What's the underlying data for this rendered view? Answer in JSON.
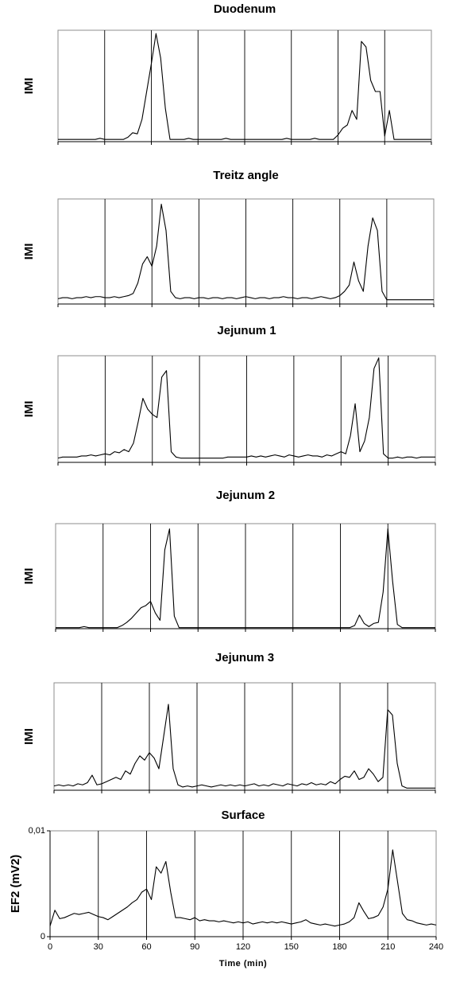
{
  "chart_data": [
    {
      "type": "line",
      "title": "Duodenum",
      "ylabel": "IMI",
      "xlim": [
        0,
        240
      ],
      "xticks": [
        0,
        30,
        60,
        90,
        120,
        150,
        180,
        210,
        240
      ],
      "xtick_labels": false,
      "ylim": [
        0,
        1
      ],
      "grid": true,
      "color": "#000000",
      "x": [
        0,
        3,
        6,
        9,
        12,
        15,
        18,
        21,
        24,
        27,
        30,
        33,
        36,
        39,
        42,
        45,
        48,
        51,
        54,
        57,
        60,
        63,
        66,
        69,
        72,
        75,
        78,
        81,
        84,
        87,
        90,
        93,
        96,
        99,
        102,
        105,
        108,
        111,
        114,
        117,
        120,
        123,
        126,
        129,
        132,
        135,
        138,
        141,
        144,
        147,
        150,
        153,
        156,
        159,
        162,
        165,
        168,
        171,
        174,
        177,
        180,
        183,
        186,
        189,
        192,
        195,
        198,
        201,
        204,
        207,
        210,
        213,
        216,
        219,
        222,
        225,
        228,
        231,
        234,
        237,
        240
      ],
      "values": [
        0.02,
        0.02,
        0.02,
        0.02,
        0.02,
        0.02,
        0.02,
        0.02,
        0.02,
        0.03,
        0.02,
        0.02,
        0.02,
        0.02,
        0.02,
        0.04,
        0.08,
        0.07,
        0.2,
        0.45,
        0.7,
        0.97,
        0.75,
        0.3,
        0.02,
        0.02,
        0.02,
        0.02,
        0.03,
        0.02,
        0.02,
        0.02,
        0.02,
        0.02,
        0.02,
        0.02,
        0.03,
        0.02,
        0.02,
        0.02,
        0.02,
        0.02,
        0.02,
        0.02,
        0.02,
        0.02,
        0.02,
        0.02,
        0.02,
        0.03,
        0.02,
        0.02,
        0.02,
        0.02,
        0.02,
        0.03,
        0.02,
        0.02,
        0.02,
        0.02,
        0.06,
        0.12,
        0.15,
        0.28,
        0.2,
        0.9,
        0.85,
        0.55,
        0.45,
        0.45,
        0.05,
        0.28,
        0.02,
        0.02,
        0.02,
        0.02,
        0.02,
        0.02,
        0.02,
        0.02,
        0.02
      ]
    },
    {
      "type": "line",
      "title": "Treitz angle",
      "ylabel": "IMI",
      "xlim": [
        0,
        240
      ],
      "xticks": [
        0,
        30,
        60,
        90,
        120,
        150,
        180,
        210,
        240
      ],
      "xtick_labels": false,
      "ylim": [
        0,
        1
      ],
      "grid": true,
      "color": "#000000",
      "x": [
        0,
        3,
        6,
        9,
        12,
        15,
        18,
        21,
        24,
        27,
        30,
        33,
        36,
        39,
        42,
        45,
        48,
        51,
        54,
        57,
        60,
        63,
        66,
        69,
        72,
        75,
        78,
        81,
        84,
        87,
        90,
        93,
        96,
        99,
        102,
        105,
        108,
        111,
        114,
        117,
        120,
        123,
        126,
        129,
        132,
        135,
        138,
        141,
        144,
        147,
        150,
        153,
        156,
        159,
        162,
        165,
        168,
        171,
        174,
        177,
        180,
        183,
        186,
        189,
        192,
        195,
        198,
        201,
        204,
        207,
        210,
        213,
        216,
        219,
        222,
        225,
        228,
        231,
        234,
        237,
        240
      ],
      "values": [
        0.05,
        0.06,
        0.06,
        0.05,
        0.06,
        0.06,
        0.07,
        0.06,
        0.07,
        0.07,
        0.06,
        0.06,
        0.07,
        0.06,
        0.07,
        0.08,
        0.1,
        0.2,
        0.38,
        0.45,
        0.36,
        0.55,
        0.95,
        0.7,
        0.12,
        0.06,
        0.05,
        0.06,
        0.06,
        0.05,
        0.06,
        0.06,
        0.05,
        0.06,
        0.06,
        0.05,
        0.06,
        0.06,
        0.05,
        0.06,
        0.07,
        0.06,
        0.05,
        0.06,
        0.06,
        0.05,
        0.06,
        0.06,
        0.07,
        0.06,
        0.06,
        0.05,
        0.06,
        0.06,
        0.05,
        0.06,
        0.07,
        0.06,
        0.05,
        0.06,
        0.08,
        0.12,
        0.18,
        0.4,
        0.22,
        0.12,
        0.55,
        0.82,
        0.7,
        0.12,
        0.04,
        0.04,
        0.04,
        0.04,
        0.04,
        0.04,
        0.04,
        0.04,
        0.04,
        0.04,
        0.04
      ]
    },
    {
      "type": "line",
      "title": "Jejunum 1",
      "ylabel": "IMI",
      "xlim": [
        0,
        240
      ],
      "xticks": [
        0,
        30,
        60,
        90,
        120,
        150,
        180,
        210,
        240
      ],
      "xtick_labels": false,
      "ylim": [
        0,
        1
      ],
      "grid": true,
      "color": "#000000",
      "x": [
        0,
        3,
        6,
        9,
        12,
        15,
        18,
        21,
        24,
        27,
        30,
        33,
        36,
        39,
        42,
        45,
        48,
        51,
        54,
        57,
        60,
        63,
        66,
        69,
        72,
        75,
        78,
        81,
        84,
        87,
        90,
        93,
        96,
        99,
        102,
        105,
        108,
        111,
        114,
        117,
        120,
        123,
        126,
        129,
        132,
        135,
        138,
        141,
        144,
        147,
        150,
        153,
        156,
        159,
        162,
        165,
        168,
        171,
        174,
        177,
        180,
        183,
        186,
        189,
        192,
        195,
        198,
        201,
        204,
        207,
        210,
        213,
        216,
        219,
        222,
        225,
        228,
        231,
        234,
        237,
        240
      ],
      "values": [
        0.04,
        0.05,
        0.05,
        0.05,
        0.05,
        0.06,
        0.06,
        0.07,
        0.06,
        0.07,
        0.08,
        0.07,
        0.1,
        0.09,
        0.12,
        0.1,
        0.18,
        0.38,
        0.6,
        0.5,
        0.45,
        0.42,
        0.8,
        0.86,
        0.1,
        0.05,
        0.04,
        0.04,
        0.04,
        0.04,
        0.04,
        0.04,
        0.04,
        0.04,
        0.04,
        0.04,
        0.05,
        0.05,
        0.05,
        0.05,
        0.05,
        0.06,
        0.05,
        0.06,
        0.05,
        0.06,
        0.07,
        0.06,
        0.05,
        0.07,
        0.06,
        0.05,
        0.06,
        0.07,
        0.06,
        0.06,
        0.05,
        0.07,
        0.06,
        0.08,
        0.1,
        0.08,
        0.25,
        0.55,
        0.1,
        0.2,
        0.42,
        0.88,
        0.98,
        0.08,
        0.04,
        0.04,
        0.05,
        0.04,
        0.05,
        0.05,
        0.04,
        0.05,
        0.05,
        0.05,
        0.05
      ]
    },
    {
      "type": "line",
      "title": "Jejunum 2",
      "ylabel": "IMI",
      "xlim": [
        0,
        240
      ],
      "xticks": [
        0,
        30,
        60,
        90,
        120,
        150,
        180,
        210,
        240
      ],
      "xtick_labels": false,
      "ylim": [
        0,
        1
      ],
      "grid": true,
      "color": "#000000",
      "x": [
        0,
        3,
        6,
        9,
        12,
        15,
        18,
        21,
        24,
        27,
        30,
        33,
        36,
        39,
        42,
        45,
        48,
        51,
        54,
        57,
        60,
        63,
        66,
        69,
        72,
        75,
        78,
        81,
        84,
        87,
        90,
        93,
        96,
        99,
        102,
        105,
        108,
        111,
        114,
        117,
        120,
        123,
        126,
        129,
        132,
        135,
        138,
        141,
        144,
        147,
        150,
        153,
        156,
        159,
        162,
        165,
        168,
        171,
        174,
        177,
        180,
        183,
        186,
        189,
        192,
        195,
        198,
        201,
        204,
        207,
        210,
        213,
        216,
        219,
        222,
        225,
        228,
        231,
        234,
        237,
        240
      ],
      "values": [
        0.01,
        0.01,
        0.01,
        0.01,
        0.01,
        0.01,
        0.02,
        0.01,
        0.01,
        0.01,
        0.01,
        0.01,
        0.01,
        0.01,
        0.03,
        0.06,
        0.1,
        0.15,
        0.2,
        0.22,
        0.26,
        0.15,
        0.08,
        0.75,
        0.95,
        0.12,
        0.01,
        0.01,
        0.01,
        0.01,
        0.01,
        0.01,
        0.01,
        0.01,
        0.01,
        0.01,
        0.01,
        0.01,
        0.01,
        0.01,
        0.01,
        0.01,
        0.01,
        0.01,
        0.01,
        0.01,
        0.01,
        0.01,
        0.01,
        0.01,
        0.01,
        0.01,
        0.01,
        0.01,
        0.01,
        0.01,
        0.01,
        0.01,
        0.01,
        0.01,
        0.01,
        0.01,
        0.01,
        0.03,
        0.13,
        0.05,
        0.02,
        0.05,
        0.06,
        0.35,
        0.95,
        0.45,
        0.04,
        0.01,
        0.01,
        0.01,
        0.01,
        0.01,
        0.01,
        0.01,
        0.01
      ]
    },
    {
      "type": "line",
      "title": "Jejunum 3",
      "ylabel": "IMI",
      "xlim": [
        0,
        240
      ],
      "xticks": [
        0,
        30,
        60,
        90,
        120,
        150,
        180,
        210,
        240
      ],
      "xtick_labels": false,
      "ylim": [
        0,
        1
      ],
      "grid": true,
      "color": "#000000",
      "x": [
        0,
        3,
        6,
        9,
        12,
        15,
        18,
        21,
        24,
        27,
        30,
        33,
        36,
        39,
        42,
        45,
        48,
        51,
        54,
        57,
        60,
        63,
        66,
        69,
        72,
        75,
        78,
        81,
        84,
        87,
        90,
        93,
        96,
        99,
        102,
        105,
        108,
        111,
        114,
        117,
        120,
        123,
        126,
        129,
        132,
        135,
        138,
        141,
        144,
        147,
        150,
        153,
        156,
        159,
        162,
        165,
        168,
        171,
        174,
        177,
        180,
        183,
        186,
        189,
        192,
        195,
        198,
        201,
        204,
        207,
        210,
        213,
        216,
        219,
        222,
        225,
        228,
        231,
        234,
        237,
        240
      ],
      "values": [
        0.04,
        0.05,
        0.04,
        0.05,
        0.04,
        0.06,
        0.05,
        0.07,
        0.14,
        0.05,
        0.06,
        0.08,
        0.1,
        0.12,
        0.1,
        0.18,
        0.15,
        0.25,
        0.32,
        0.28,
        0.35,
        0.3,
        0.2,
        0.5,
        0.8,
        0.2,
        0.05,
        0.03,
        0.04,
        0.03,
        0.04,
        0.05,
        0.04,
        0.03,
        0.04,
        0.05,
        0.04,
        0.05,
        0.04,
        0.05,
        0.04,
        0.05,
        0.06,
        0.04,
        0.05,
        0.04,
        0.06,
        0.05,
        0.04,
        0.06,
        0.05,
        0.04,
        0.06,
        0.05,
        0.07,
        0.05,
        0.06,
        0.05,
        0.08,
        0.06,
        0.1,
        0.13,
        0.12,
        0.18,
        0.1,
        0.12,
        0.2,
        0.15,
        0.08,
        0.12,
        0.75,
        0.7,
        0.25,
        0.04,
        0.02,
        0.02,
        0.02,
        0.02,
        0.02,
        0.02,
        0.02
      ]
    },
    {
      "type": "line",
      "title": "Surface",
      "ylabel": "EF2 (mV2)",
      "xlabel": "Time (min)",
      "xlim": [
        0,
        240
      ],
      "xticks": [
        0,
        30,
        60,
        90,
        120,
        150,
        180,
        210,
        240
      ],
      "xtick_labels": true,
      "ylim": [
        0,
        0.01
      ],
      "yticks": [
        0,
        {
          "value": 0.01,
          "label": "0,01"
        }
      ],
      "grid": true,
      "color": "#000000",
      "x": [
        0,
        3,
        6,
        9,
        12,
        15,
        18,
        21,
        24,
        27,
        30,
        33,
        36,
        39,
        42,
        45,
        48,
        51,
        54,
        57,
        60,
        63,
        66,
        69,
        72,
        75,
        78,
        81,
        84,
        87,
        90,
        93,
        96,
        99,
        102,
        105,
        108,
        111,
        114,
        117,
        120,
        123,
        126,
        129,
        132,
        135,
        138,
        141,
        144,
        147,
        150,
        153,
        156,
        159,
        162,
        165,
        168,
        171,
        174,
        177,
        180,
        183,
        186,
        189,
        192,
        195,
        198,
        201,
        204,
        207,
        210,
        213,
        216,
        219,
        222,
        225,
        228,
        231,
        234,
        237,
        240
      ],
      "values": [
        0.001,
        0.0025,
        0.0017,
        0.0018,
        0.002,
        0.0022,
        0.0021,
        0.0022,
        0.0023,
        0.0021,
        0.0019,
        0.0018,
        0.0016,
        0.0019,
        0.0022,
        0.0025,
        0.0028,
        0.0032,
        0.0035,
        0.0042,
        0.0045,
        0.0035,
        0.0066,
        0.006,
        0.0071,
        0.0042,
        0.0018,
        0.0018,
        0.0017,
        0.0016,
        0.0018,
        0.0015,
        0.0016,
        0.0015,
        0.0015,
        0.0014,
        0.0015,
        0.0014,
        0.0013,
        0.0014,
        0.0013,
        0.0014,
        0.0012,
        0.0013,
        0.0014,
        0.0013,
        0.0014,
        0.0013,
        0.0014,
        0.0013,
        0.0012,
        0.0013,
        0.0014,
        0.0016,
        0.0013,
        0.0012,
        0.0011,
        0.0012,
        0.0011,
        0.001,
        0.0011,
        0.0012,
        0.0014,
        0.0018,
        0.0032,
        0.0024,
        0.0017,
        0.0018,
        0.002,
        0.0028,
        0.0045,
        0.0082,
        0.0052,
        0.0022,
        0.0016,
        0.0015,
        0.0013,
        0.0012,
        0.0011,
        0.0012,
        0.0011
      ]
    }
  ]
}
